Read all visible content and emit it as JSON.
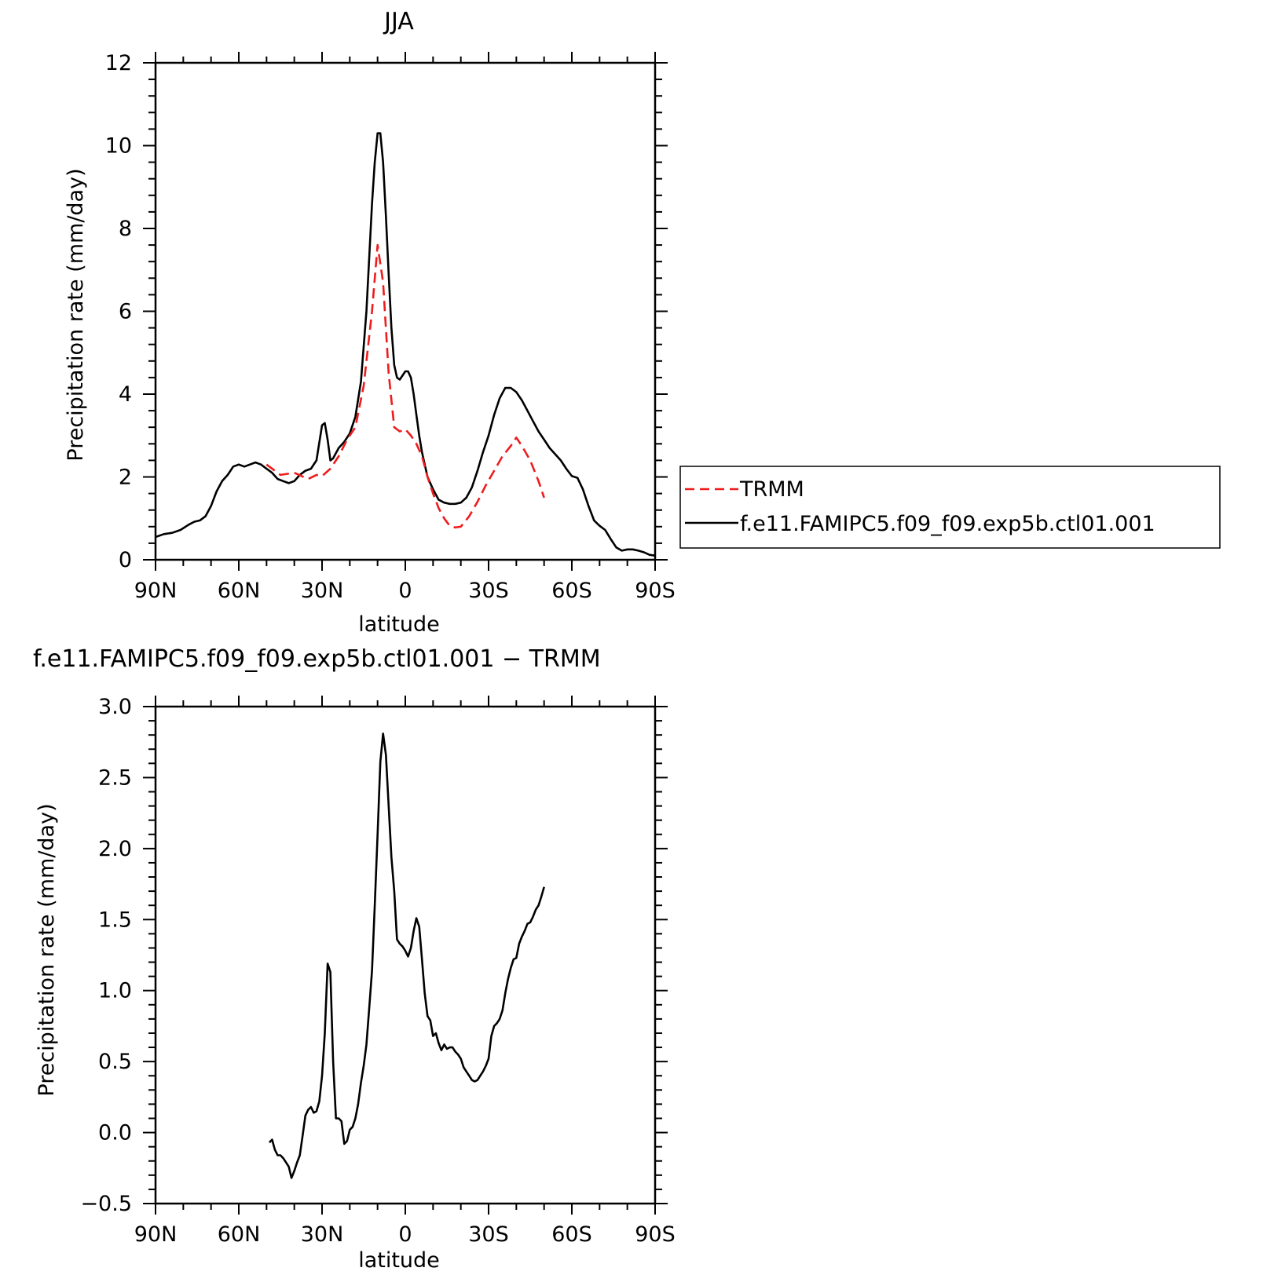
{
  "chart_data": [
    {
      "type": "line",
      "title": "JJA",
      "xlabel": "latitude",
      "ylabel": "Precipitation rate (mm/day)",
      "x_direction": "90 to -90",
      "xlim": [
        90,
        -90
      ],
      "ylim": [
        0,
        12
      ],
      "x_ticks": [
        {
          "value": 90,
          "label": "90N"
        },
        {
          "value": 60,
          "label": "60N"
        },
        {
          "value": 30,
          "label": "30N"
        },
        {
          "value": 0,
          "label": "0"
        },
        {
          "value": -30,
          "label": "30S"
        },
        {
          "value": -60,
          "label": "60S"
        },
        {
          "value": -90,
          "label": "90S"
        }
      ],
      "y_ticks": [
        {
          "value": 0,
          "label": "0"
        },
        {
          "value": 2,
          "label": "2"
        },
        {
          "value": 4,
          "label": "4"
        },
        {
          "value": 6,
          "label": "6"
        },
        {
          "value": 8,
          "label": "8"
        },
        {
          "value": 10,
          "label": "10"
        },
        {
          "value": 12,
          "label": "12"
        }
      ],
      "legend": {
        "placement": "right"
      },
      "series": [
        {
          "name": "TRMM",
          "color": "#ee1c1c",
          "dashed": true,
          "x": [
            50,
            45,
            40,
            35,
            32,
            30,
            27,
            24,
            21,
            18,
            15,
            12,
            10,
            8,
            6,
            4,
            2,
            0,
            -2,
            -4,
            -6,
            -8,
            -10,
            -12,
            -14,
            -16,
            -18,
            -20,
            -23,
            -26,
            -29,
            -32,
            -35,
            -38,
            -40,
            -42,
            -45,
            -48,
            -50
          ],
          "y": [
            2.3,
            2.05,
            2.1,
            1.95,
            2.05,
            2.02,
            2.2,
            2.5,
            2.9,
            3.2,
            4.2,
            6.0,
            7.6,
            6.7,
            4.5,
            3.2,
            3.1,
            3.15,
            3.0,
            2.8,
            2.5,
            2.0,
            1.6,
            1.25,
            1.0,
            0.82,
            0.78,
            0.8,
            1.05,
            1.4,
            1.8,
            2.15,
            2.5,
            2.75,
            2.95,
            2.75,
            2.4,
            1.9,
            1.5
          ]
        },
        {
          "name": "f.e11.FAMIPC5.f09_f09.exp5b.ctl01.001",
          "color": "#000000",
          "dashed": false,
          "x": [
            90,
            87,
            84,
            81,
            78,
            76,
            74,
            72,
            70,
            68,
            66,
            64,
            62,
            60,
            58,
            56,
            54,
            52,
            50,
            48,
            46,
            44,
            42,
            40,
            38,
            36,
            34,
            32,
            30,
            29,
            28,
            27,
            26,
            24,
            22,
            20,
            18,
            16,
            14,
            12,
            11,
            10,
            9,
            8,
            7,
            6,
            5,
            4,
            3,
            2,
            1,
            0,
            -1,
            -2,
            -3,
            -4,
            -5,
            -6,
            -8,
            -10,
            -12,
            -14,
            -16,
            -18,
            -20,
            -22,
            -24,
            -26,
            -28,
            -30,
            -32,
            -34,
            -36,
            -38,
            -40,
            -42,
            -44,
            -46,
            -48,
            -50,
            -52,
            -54,
            -56,
            -58,
            -60,
            -62,
            -64,
            -66,
            -68,
            -70,
            -72,
            -74,
            -76,
            -78,
            -80,
            -82,
            -84,
            -86,
            -88,
            -90
          ],
          "y": [
            0.55,
            0.62,
            0.65,
            0.72,
            0.85,
            0.92,
            0.95,
            1.05,
            1.3,
            1.65,
            1.9,
            2.05,
            2.25,
            2.3,
            2.25,
            2.3,
            2.35,
            2.3,
            2.2,
            2.1,
            1.95,
            1.9,
            1.85,
            1.9,
            2.05,
            2.15,
            2.2,
            2.4,
            3.25,
            3.3,
            2.9,
            2.4,
            2.45,
            2.7,
            2.85,
            3.05,
            3.45,
            4.3,
            6.0,
            8.6,
            9.6,
            10.3,
            10.3,
            9.6,
            8.3,
            6.9,
            5.6,
            4.7,
            4.4,
            4.35,
            4.45,
            4.55,
            4.55,
            4.4,
            4.0,
            3.5,
            3.0,
            2.6,
            2.0,
            1.7,
            1.45,
            1.38,
            1.35,
            1.35,
            1.38,
            1.5,
            1.75,
            2.15,
            2.6,
            3.0,
            3.5,
            3.9,
            4.15,
            4.15,
            4.05,
            3.85,
            3.6,
            3.35,
            3.1,
            2.9,
            2.7,
            2.55,
            2.4,
            2.2,
            2.02,
            1.98,
            1.7,
            1.3,
            0.95,
            0.82,
            0.72,
            0.5,
            0.3,
            0.22,
            0.25,
            0.25,
            0.22,
            0.18,
            0.12,
            0.1
          ]
        }
      ]
    },
    {
      "type": "line",
      "title": "f.e11.FAMIPC5.f09_f09.exp5b.ctl01.001 − TRMM",
      "xlabel": "latitude",
      "ylabel": "Precipitation rate (mm/day)",
      "xlim": [
        90,
        -90
      ],
      "ylim": [
        -0.5,
        3.0
      ],
      "x_ticks": [
        {
          "value": 90,
          "label": "90N"
        },
        {
          "value": 60,
          "label": "60N"
        },
        {
          "value": 30,
          "label": "30N"
        },
        {
          "value": 0,
          "label": "0"
        },
        {
          "value": -30,
          "label": "30S"
        },
        {
          "value": -60,
          "label": "60S"
        },
        {
          "value": -90,
          "label": "90S"
        }
      ],
      "y_ticks": [
        {
          "value": -0.5,
          "label": "−0.5"
        },
        {
          "value": 0.0,
          "label": "0.0"
        },
        {
          "value": 0.5,
          "label": "0.5"
        },
        {
          "value": 1.0,
          "label": "1.0"
        },
        {
          "value": 1.5,
          "label": "1.5"
        },
        {
          "value": 2.0,
          "label": "2.0"
        },
        {
          "value": 2.5,
          "label": "2.5"
        },
        {
          "value": 3.0,
          "label": "3.0"
        }
      ],
      "series": [
        {
          "color": "#000000",
          "dashed": false,
          "x": [
            49,
            48,
            47,
            46,
            45,
            44,
            43,
            42,
            41,
            40,
            39,
            38,
            37,
            36,
            35,
            34,
            33,
            32,
            31,
            30,
            29,
            28,
            27,
            26,
            25,
            24,
            23,
            22,
            21,
            20,
            19,
            18,
            17,
            16,
            15,
            14,
            13,
            12,
            11,
            10,
            9,
            8,
            7,
            6,
            5,
            4,
            3,
            2,
            1,
            0,
            -1,
            -2,
            -3,
            -4,
            -5,
            -6,
            -7,
            -8,
            -9,
            -10,
            -11,
            -12,
            -13,
            -14,
            -15,
            -16,
            -17,
            -18,
            -19,
            -20,
            -21,
            -22,
            -23,
            -24,
            -25,
            -26,
            -27,
            -28,
            -29,
            -30,
            -31,
            -32,
            -33,
            -34,
            -35,
            -36,
            -37,
            -38,
            -39,
            -40,
            -41,
            -42,
            -43,
            -44,
            -45,
            -46,
            -47,
            -48,
            -49,
            -50
          ],
          "y": [
            -0.07,
            -0.05,
            -0.12,
            -0.16,
            -0.16,
            -0.18,
            -0.21,
            -0.24,
            -0.32,
            -0.27,
            -0.21,
            -0.16,
            -0.02,
            0.12,
            0.16,
            0.18,
            0.14,
            0.15,
            0.22,
            0.4,
            0.7,
            1.19,
            1.13,
            0.5,
            0.1,
            0.1,
            0.08,
            -0.08,
            -0.06,
            0.02,
            0.04,
            0.1,
            0.2,
            0.35,
            0.47,
            0.62,
            0.88,
            1.14,
            1.6,
            2.1,
            2.61,
            2.81,
            2.66,
            2.3,
            1.94,
            1.7,
            1.36,
            1.33,
            1.31,
            1.28,
            1.24,
            1.3,
            1.42,
            1.51,
            1.45,
            1.22,
            0.98,
            0.82,
            0.79,
            0.68,
            0.7,
            0.63,
            0.58,
            0.62,
            0.59,
            0.6,
            0.6,
            0.57,
            0.55,
            0.52,
            0.46,
            0.43,
            0.4,
            0.37,
            0.36,
            0.37,
            0.4,
            0.43,
            0.47,
            0.52,
            0.68,
            0.75,
            0.77,
            0.8,
            0.86,
            0.98,
            1.08,
            1.16,
            1.22,
            1.23,
            1.33,
            1.38,
            1.42,
            1.47,
            1.48,
            1.52,
            1.57,
            1.6,
            1.66,
            1.73
          ]
        }
      ]
    }
  ]
}
